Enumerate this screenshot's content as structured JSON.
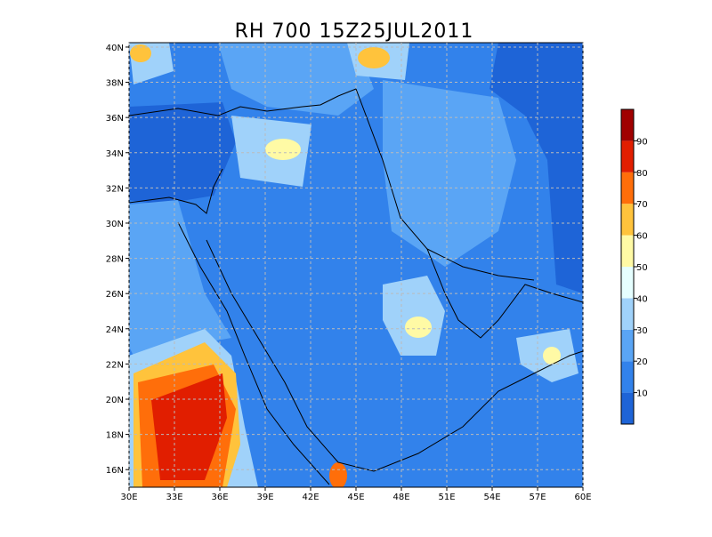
{
  "map": {
    "title": "RH 700  15Z25JUL2011",
    "lonlim": [
      30,
      60
    ],
    "latlim": [
      15,
      40.25
    ],
    "lon_ticks": [
      {
        "value": 30,
        "label": "30E"
      },
      {
        "value": 33,
        "label": "33E"
      },
      {
        "value": 36,
        "label": "36E"
      },
      {
        "value": 39,
        "label": "39E"
      },
      {
        "value": 42,
        "label": "42E"
      },
      {
        "value": 45,
        "label": "45E"
      },
      {
        "value": 48,
        "label": "48E"
      },
      {
        "value": 51,
        "label": "51E"
      },
      {
        "value": 54,
        "label": "54E"
      },
      {
        "value": 57,
        "label": "57E"
      },
      {
        "value": 60,
        "label": "60E"
      }
    ],
    "lat_ticks": [
      {
        "value": 16,
        "label": "16N"
      },
      {
        "value": 18,
        "label": "18N"
      },
      {
        "value": 20,
        "label": "20N"
      },
      {
        "value": 22,
        "label": "22N"
      },
      {
        "value": 24,
        "label": "24N"
      },
      {
        "value": 26,
        "label": "26N"
      },
      {
        "value": 28,
        "label": "28N"
      },
      {
        "value": 30,
        "label": "30N"
      },
      {
        "value": 32,
        "label": "32N"
      },
      {
        "value": 34,
        "label": "34N"
      },
      {
        "value": 36,
        "label": "36N"
      },
      {
        "value": 38,
        "label": "38N"
      },
      {
        "value": 40,
        "label": "40N"
      }
    ],
    "grid": true,
    "colorbar": {
      "levels": [
        10,
        20,
        30,
        40,
        50,
        60,
        70,
        80,
        90
      ],
      "colors": [
        "#1e64d7",
        "#3282eb",
        "#5aa5f5",
        "#a0d2fa",
        "#e6ffff",
        "#fffaa5",
        "#ffc33c",
        "#ff6e0a",
        "#e11e00",
        "#a00000"
      ]
    }
  }
}
